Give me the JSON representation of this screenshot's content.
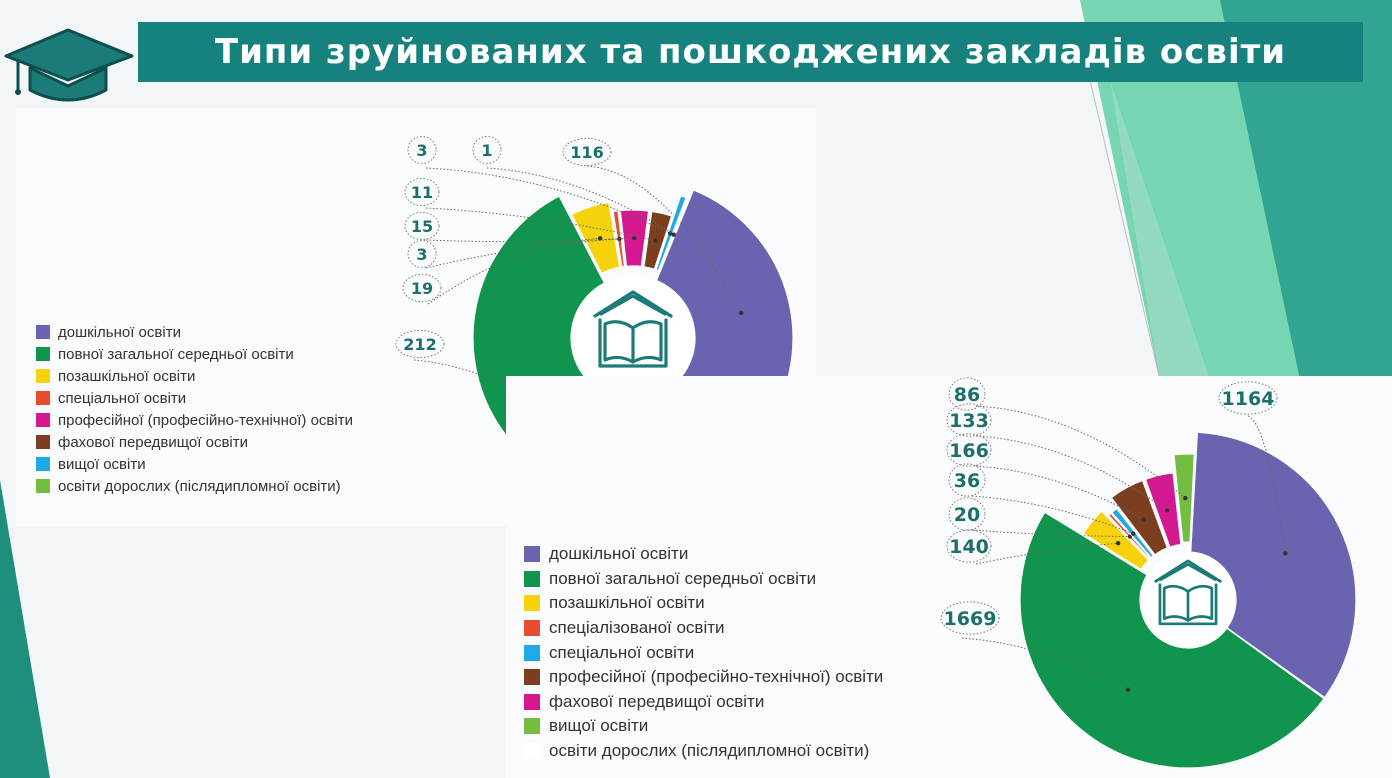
{
  "title": "Типи зруйнованих та пошкоджених закладів освіти",
  "colors": {
    "accent": "#17827d",
    "label_text": "#1c6f6d",
    "series": [
      "#6a64b0",
      "#11944d",
      "#f5d20c",
      "#e64c2d",
      "#d4188f",
      "#7b3f1f",
      "#1fa9e6",
      "#74bd43",
      "#ffffff"
    ]
  },
  "icons": {
    "header": "graduation-cap-icon",
    "chart_center": "book-house-icon"
  },
  "chart_data": [
    {
      "type": "pie",
      "style": "donut",
      "categories": [
        "дошкільної освіти",
        "повної загальної середньої освіти",
        "позашкільної освіти",
        "спеціальної освіти",
        "професійної (професійно-технічної) освіти",
        "фахової передвищої освіти",
        "вищої освіти",
        "освіти дорослих (післядипломної освіти)"
      ],
      "values": [
        116,
        212,
        19,
        3,
        15,
        11,
        3,
        1
      ],
      "colors": [
        "#6a64b0",
        "#11944d",
        "#f5d20c",
        "#e64c2d",
        "#d4188f",
        "#7b3f1f",
        "#1fa9e6",
        "#74bd43"
      ],
      "labels": [
        "116",
        "212",
        "19",
        "3",
        "15",
        "11",
        "3",
        "1"
      ],
      "legend": "left"
    },
    {
      "type": "pie",
      "style": "donut",
      "categories": [
        "дошкільної освіти",
        "повної загальної середньої освіти",
        "позашкільної освіти",
        "спеціалізованої освіти",
        "спеціальної освіти",
        "професійної (професійно-технічної) освіти",
        "фахової передвищої освіти",
        "вищої освіти",
        "освіти дорослих (післядипломної освіти)"
      ],
      "values": [
        1164,
        1669,
        140,
        20,
        36,
        166,
        133,
        86,
        0
      ],
      "colors": [
        "#6a64b0",
        "#11944d",
        "#f5d20c",
        "#e64c2d",
        "#1fa9e6",
        "#7b3f1f",
        "#d4188f",
        "#74bd43",
        "#ffffff"
      ],
      "labels": [
        "1164",
        "1669",
        "140",
        "20",
        "36",
        "166",
        "133",
        "86",
        ""
      ],
      "legend": "left"
    }
  ]
}
